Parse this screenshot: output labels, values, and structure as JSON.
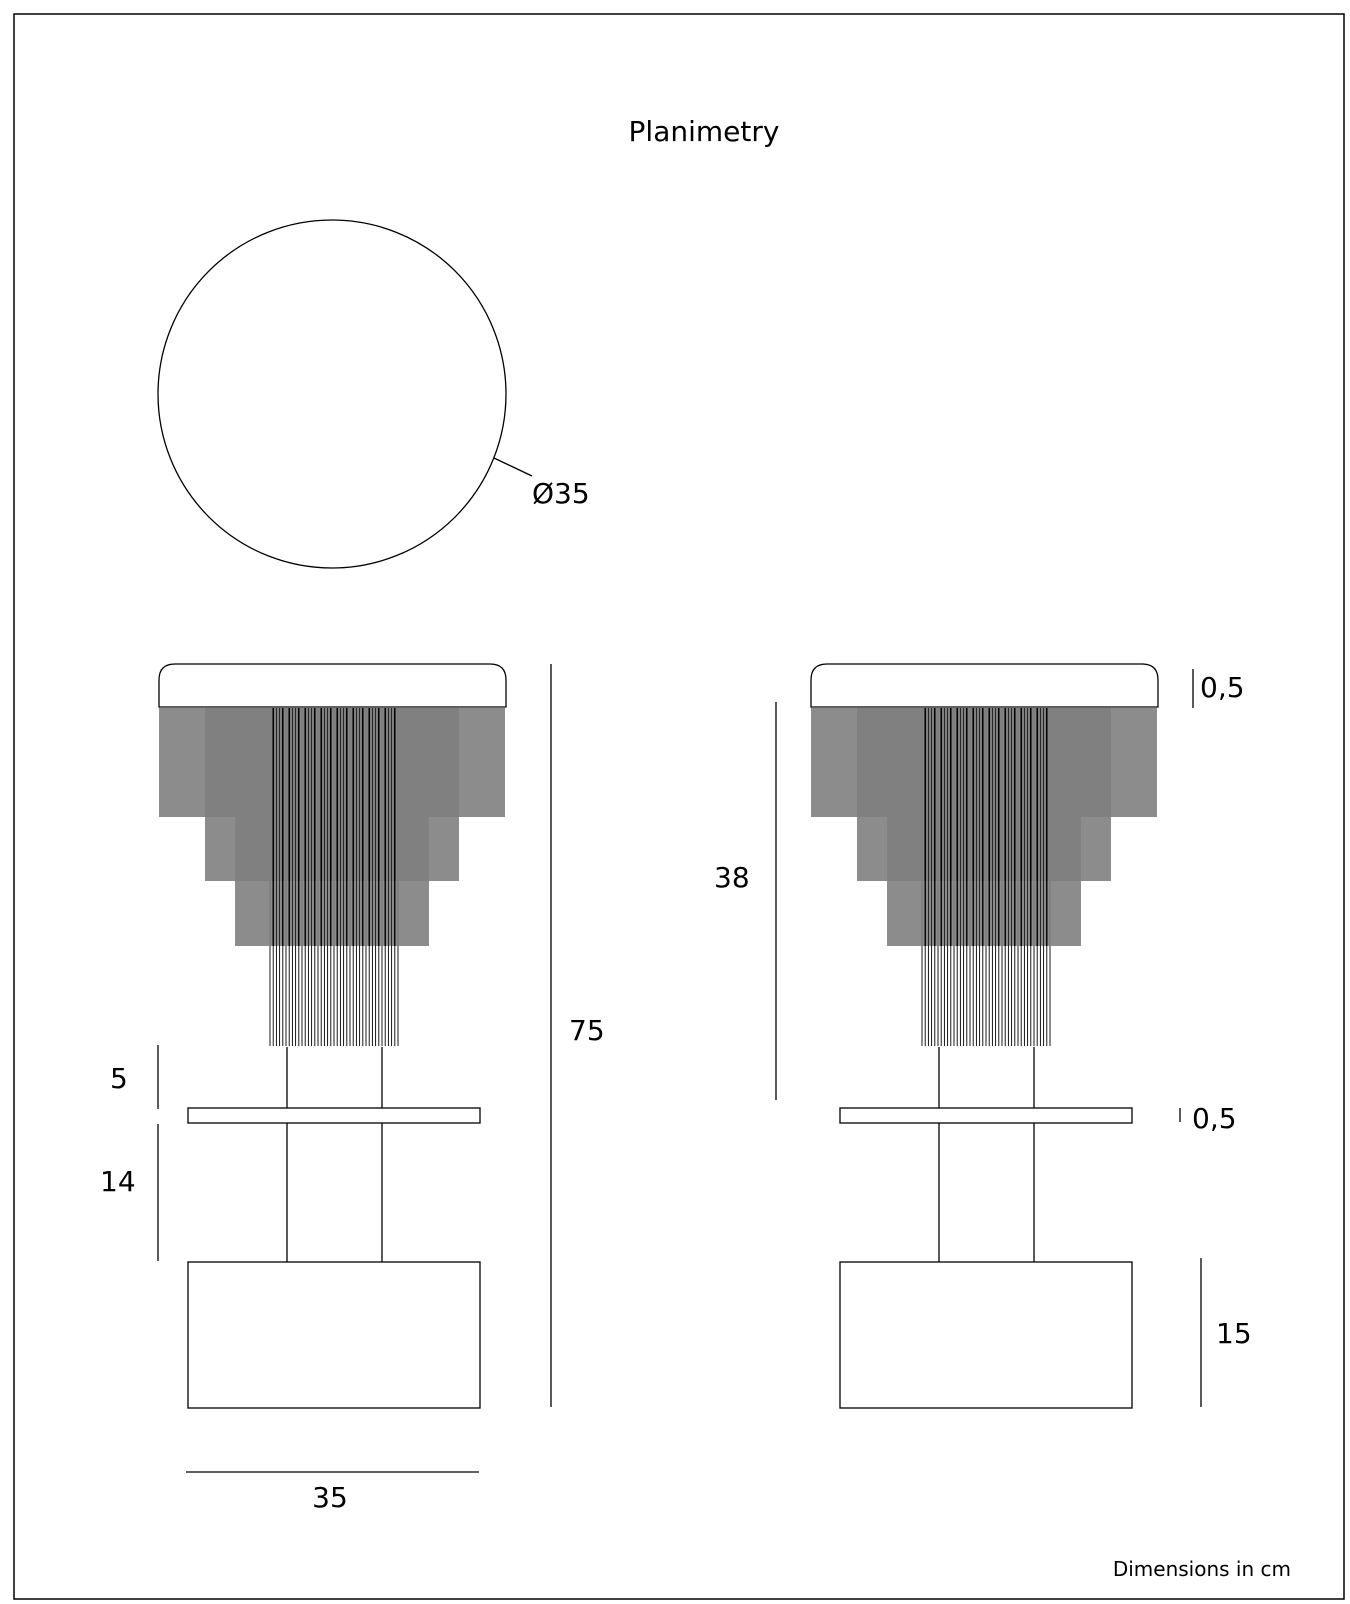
{
  "title": "Planimetry",
  "footnote": "Dimensions in cm",
  "plan_view": {
    "diameter_label": "Ø35"
  },
  "front_view": {
    "width_label": "35",
    "total_height_label": "75",
    "gap_label": "5",
    "column_label": "14"
  },
  "side_view": {
    "top_thickness_label": "0,5",
    "fringe_height_label": "38",
    "shelf_thickness_label": "0,5",
    "base_height_label": "15"
  },
  "colors": {
    "line": "#000000",
    "background": "#ffffff"
  }
}
